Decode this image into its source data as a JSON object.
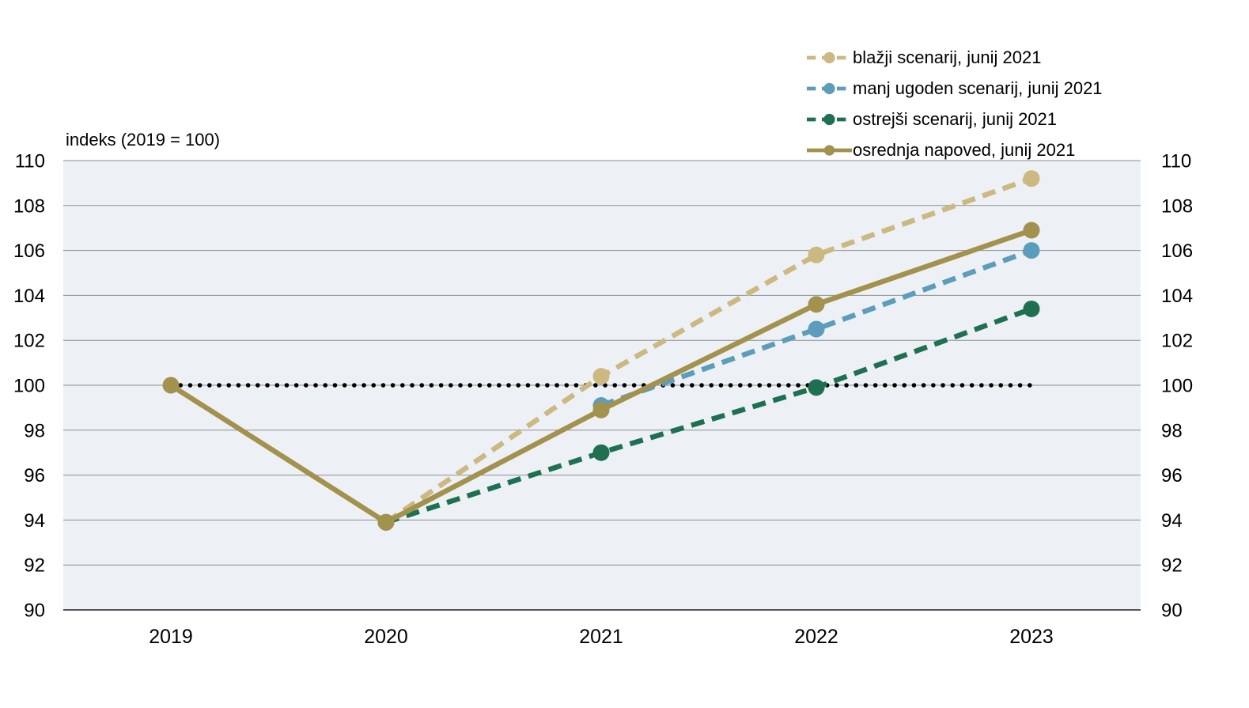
{
  "chart_data": {
    "type": "line",
    "title": "indeks (2019 = 100)",
    "x": [
      2019,
      2020,
      2021,
      2022,
      2023
    ],
    "xticks": [
      "2019",
      "2020",
      "2021",
      "2022",
      "2023"
    ],
    "yticks": [
      90,
      92,
      94,
      96,
      98,
      100,
      102,
      104,
      106,
      108,
      110
    ],
    "ylim": [
      90,
      110
    ],
    "ytick_sides": "both",
    "grid": true,
    "legend_position": "top-right",
    "reference_line": {
      "y": 100,
      "style": "dotted",
      "color": "#000000",
      "x_start": 2019,
      "x_end": 2023
    },
    "series": [
      {
        "name": "blažji scenarij, junij 2021",
        "color": "#cbb981",
        "style": "dashed",
        "x": [
          2020,
          2021,
          2022,
          2023
        ],
        "values": [
          93.9,
          100.4,
          105.8,
          109.2
        ]
      },
      {
        "name": "manj ugoden scenarij, junij 2021",
        "color": "#5c9dbb",
        "style": "dashed",
        "x": [
          2021,
          2022,
          2023
        ],
        "values": [
          99.1,
          102.5,
          106.0
        ]
      },
      {
        "name": "ostrejši scenarij, junij 2021",
        "color": "#1f7050",
        "style": "dashed",
        "x": [
          2020,
          2021,
          2022,
          2023
        ],
        "values": [
          93.9,
          97.0,
          99.9,
          103.4
        ]
      },
      {
        "name": "osrednja napoved, junij 2021",
        "color": "#a3914e",
        "style": "solid",
        "x": [
          2019,
          2020,
          2021,
          2022,
          2023
        ],
        "values": [
          100.0,
          93.9,
          98.9,
          103.6,
          106.9
        ]
      }
    ],
    "colors": {
      "plot_background": "#edf1f5",
      "gridline": "#8a8f93",
      "axis_line": "#555555",
      "text": "#000000"
    }
  }
}
